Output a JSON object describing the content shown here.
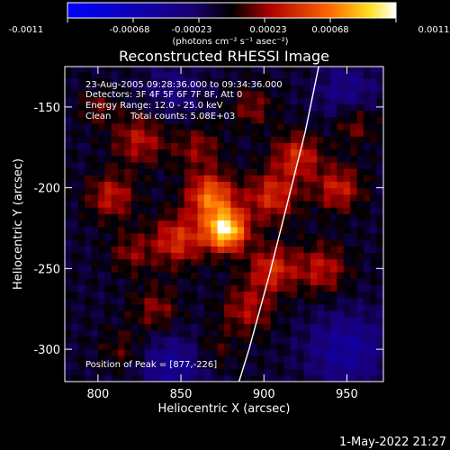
{
  "chart_data": {
    "type": "heatmap",
    "title": "Reconstructed RHESSI Image",
    "xlabel": "Heliocentric X (arcsec)",
    "ylabel": "Heliocentric Y (arcsec)",
    "xlim": [
      780,
      972
    ],
    "ylim": [
      -320,
      -125
    ],
    "x_ticks": [
      800,
      850,
      900,
      950
    ],
    "y_ticks": [
      -150,
      -200,
      -250,
      -300
    ],
    "colorbar": {
      "ticks": [
        "-0.0011",
        "-0.00068",
        "-0.00023",
        "0.00023",
        "0.00068",
        "0.0011"
      ],
      "range": [
        -0.0011,
        0.0011
      ],
      "unit_label": "(photons cm⁻² s⁻¹ asec⁻²)"
    },
    "annotations": {
      "time_range": "23-Aug-2005 09:28:36.000 to 09:34:36.000",
      "detectors": "Detectors: 3F 4F 5F 6F 7F 8F, Att 0",
      "energy_range": "Energy Range: 12.0 - 25.0 keV",
      "clean_label": "Clean",
      "total_counts": "Total counts: 5.08E+03",
      "peak": "Position of Peak = [877,-226]"
    },
    "peak_position": [
      877,
      -226
    ],
    "sources": [
      {
        "x": 877,
        "y": -226,
        "amp": 0.0011,
        "sigma": 9
      },
      {
        "x": 868,
        "y": -205,
        "amp": 0.00072,
        "sigma": 10
      },
      {
        "x": 848,
        "y": -232,
        "amp": 0.00052,
        "sigma": 11
      },
      {
        "x": 905,
        "y": -205,
        "amp": 0.0005,
        "sigma": 11
      },
      {
        "x": 905,
        "y": -250,
        "amp": 0.0005,
        "sigma": 10
      },
      {
        "x": 825,
        "y": -170,
        "amp": 0.0004,
        "sigma": 11
      },
      {
        "x": 808,
        "y": -205,
        "amp": 0.00042,
        "sigma": 10
      },
      {
        "x": 920,
        "y": -180,
        "amp": 0.00048,
        "sigma": 10
      },
      {
        "x": 945,
        "y": -200,
        "amp": 0.00045,
        "sigma": 10
      },
      {
        "x": 935,
        "y": -250,
        "amp": 0.0004,
        "sigma": 11
      },
      {
        "x": 890,
        "y": -275,
        "amp": 0.00036,
        "sigma": 11
      },
      {
        "x": 835,
        "y": -275,
        "amp": 0.0003,
        "sigma": 10
      },
      {
        "x": 860,
        "y": -175,
        "amp": 0.0003,
        "sigma": 10
      },
      {
        "x": 815,
        "y": -300,
        "amp": 0.0002,
        "sigma": 9
      },
      {
        "x": 870,
        "y": -300,
        "amp": 0.00018,
        "sigma": 9
      },
      {
        "x": 955,
        "y": -160,
        "amp": 0.0003,
        "sigma": 9
      },
      {
        "x": 820,
        "y": -240,
        "amp": 0.00028,
        "sigma": 9
      },
      {
        "x": 800,
        "y": -150,
        "amp": 0.00022,
        "sigma": 8
      },
      {
        "x": 893,
        "y": -150,
        "amp": 0.00028,
        "sigma": 9
      },
      {
        "x": 950,
        "y": -300,
        "amp": -0.0004,
        "sigma": 16
      },
      {
        "x": 845,
        "y": -310,
        "amp": -0.00035,
        "sigma": 14
      },
      {
        "x": 950,
        "y": -140,
        "amp": -0.00028,
        "sigma": 13
      },
      {
        "x": 845,
        "y": -140,
        "amp": -0.00022,
        "sigma": 12
      }
    ],
    "limb_arc": [
      [
        933,
        -125
      ],
      [
        925,
        -165
      ],
      [
        914,
        -210
      ],
      [
        903,
        -255
      ],
      [
        891,
        -300
      ],
      [
        885,
        -320
      ]
    ]
  },
  "footer": {
    "date": "1-May-2022 21:27"
  }
}
